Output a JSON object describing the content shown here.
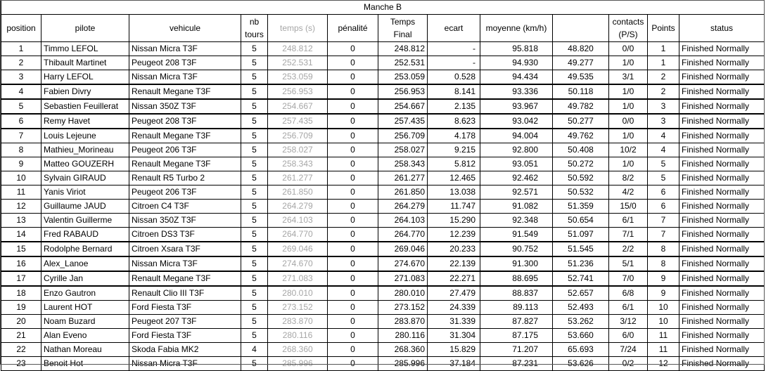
{
  "title": "Manche B",
  "headers": {
    "position": "position",
    "pilote": "pilote",
    "vehicule": "vehicule",
    "nb_tours": "nb tours",
    "temps": "temps (s)",
    "penalite": "pénalité",
    "temps_final": "Temps Final",
    "ecart": "ecart",
    "moyenne": "moyenne (km/h)",
    "unnamed": "",
    "contacts": "contacts (P/S)",
    "points": "Points",
    "status": "status"
  },
  "rows": [
    {
      "position": "1",
      "pilote": "Timmo LEFOL",
      "vehicule": "Nissan Micra T3F",
      "nb_tours": "5",
      "temps": "248.812",
      "penalite": "0",
      "temps_final": "248.812",
      "ecart": "-",
      "moyenne": "95.818",
      "unnamed": "48.820",
      "contacts": "0/0",
      "points": "1",
      "status": "Finished Normally"
    },
    {
      "position": "2",
      "pilote": "Thibault Martinet",
      "vehicule": "Peugeot 208 T3F",
      "nb_tours": "5",
      "temps": "252.531",
      "penalite": "0",
      "temps_final": "252.531",
      "ecart": "-",
      "moyenne": "94.930",
      "unnamed": "49.277",
      "contacts": "1/0",
      "points": "1",
      "status": "Finished Normally"
    },
    {
      "position": "3",
      "pilote": "Harry LEFOL",
      "vehicule": "Nissan Micra T3F",
      "nb_tours": "5",
      "temps": "253.059",
      "penalite": "0",
      "temps_final": "253.059",
      "ecart": "0.528",
      "moyenne": "94.434",
      "unnamed": "49.535",
      "contacts": "3/1",
      "points": "2",
      "status": "Finished Normally"
    },
    {
      "position": "4",
      "pilote": "Fabien Divry",
      "vehicule": "Renault Megane T3F",
      "nb_tours": "5",
      "temps": "256.953",
      "penalite": "0",
      "temps_final": "256.953",
      "ecart": "8.141",
      "moyenne": "93.336",
      "unnamed": "50.118",
      "contacts": "1/0",
      "points": "2",
      "status": "Finished Normally"
    },
    {
      "position": "5",
      "pilote": "Sebastien Feuillerat",
      "vehicule": "Nissan 350Z T3F",
      "nb_tours": "5",
      "temps": "254.667",
      "penalite": "0",
      "temps_final": "254.667",
      "ecart": "2.135",
      "moyenne": "93.967",
      "unnamed": "49.782",
      "contacts": "1/0",
      "points": "3",
      "status": "Finished Normally"
    },
    {
      "position": "6",
      "pilote": "Remy Havet",
      "vehicule": "Peugeot 208 T3F",
      "nb_tours": "5",
      "temps": "257.435",
      "penalite": "0",
      "temps_final": "257.435",
      "ecart": "8.623",
      "moyenne": "93.042",
      "unnamed": "50.277",
      "contacts": "0/0",
      "points": "3",
      "status": "Finished Normally"
    },
    {
      "position": "7",
      "pilote": "Louis Lejeune",
      "vehicule": "Renault Megane T3F",
      "nb_tours": "5",
      "temps": "256.709",
      "penalite": "0",
      "temps_final": "256.709",
      "ecart": "4.178",
      "moyenne": "94.004",
      "unnamed": "49.762",
      "contacts": "1/0",
      "points": "4",
      "status": "Finished Normally"
    },
    {
      "position": "8",
      "pilote": "Mathieu_Morineau",
      "vehicule": "Peugeot 206 T3F",
      "nb_tours": "5",
      "temps": "258.027",
      "penalite": "0",
      "temps_final": "258.027",
      "ecart": "9.215",
      "moyenne": "92.800",
      "unnamed": "50.408",
      "contacts": "10/2",
      "points": "4",
      "status": "Finished Normally"
    },
    {
      "position": "9",
      "pilote": "Matteo GOUZERH",
      "vehicule": "Renault Megane T3F",
      "nb_tours": "5",
      "temps": "258.343",
      "penalite": "0",
      "temps_final": "258.343",
      "ecart": "5.812",
      "moyenne": "93.051",
      "unnamed": "50.272",
      "contacts": "1/0",
      "points": "5",
      "status": "Finished Normally"
    },
    {
      "position": "10",
      "pilote": "Sylvain GIRAUD",
      "vehicule": "Renault R5 Turbo 2",
      "nb_tours": "5",
      "temps": "261.277",
      "penalite": "0",
      "temps_final": "261.277",
      "ecart": "12.465",
      "moyenne": "92.462",
      "unnamed": "50.592",
      "contacts": "8/2",
      "points": "5",
      "status": "Finished Normally"
    },
    {
      "position": "11",
      "pilote": "Yanis Viriot",
      "vehicule": "Peugeot 206 T3F",
      "nb_tours": "5",
      "temps": "261.850",
      "penalite": "0",
      "temps_final": "261.850",
      "ecart": "13.038",
      "moyenne": "92.571",
      "unnamed": "50.532",
      "contacts": "4/2",
      "points": "6",
      "status": "Finished Normally"
    },
    {
      "position": "12",
      "pilote": "Guillaume JAUD",
      "vehicule": "Citroen C4 T3F",
      "nb_tours": "5",
      "temps": "264.279",
      "penalite": "0",
      "temps_final": "264.279",
      "ecart": "11.747",
      "moyenne": "91.082",
      "unnamed": "51.359",
      "contacts": "15/0",
      "points": "6",
      "status": "Finished Normally"
    },
    {
      "position": "13",
      "pilote": "Valentin Guillerme",
      "vehicule": "Nissan 350Z T3F",
      "nb_tours": "5",
      "temps": "264.103",
      "penalite": "0",
      "temps_final": "264.103",
      "ecart": "15.290",
      "moyenne": "92.348",
      "unnamed": "50.654",
      "contacts": "6/1",
      "points": "7",
      "status": "Finished Normally"
    },
    {
      "position": "14",
      "pilote": "Fred RABAUD",
      "vehicule": "Citroen DS3 T3F",
      "nb_tours": "5",
      "temps": "264.770",
      "penalite": "0",
      "temps_final": "264.770",
      "ecart": "12.239",
      "moyenne": "91.549",
      "unnamed": "51.097",
      "contacts": "7/1",
      "points": "7",
      "status": "Finished Normally"
    },
    {
      "position": "15",
      "pilote": "Rodolphe Bernard",
      "vehicule": "Citroen Xsara T3F",
      "nb_tours": "5",
      "temps": "269.046",
      "penalite": "0",
      "temps_final": "269.046",
      "ecart": "20.233",
      "moyenne": "90.752",
      "unnamed": "51.545",
      "contacts": "2/2",
      "points": "8",
      "status": "Finished Normally"
    },
    {
      "position": "16",
      "pilote": "Alex_Lanoe",
      "vehicule": "Nissan Micra T3F",
      "nb_tours": "5",
      "temps": "274.670",
      "penalite": "0",
      "temps_final": "274.670",
      "ecart": "22.139",
      "moyenne": "91.300",
      "unnamed": "51.236",
      "contacts": "5/1",
      "points": "8",
      "status": "Finished Normally"
    },
    {
      "position": "17",
      "pilote": "Cyrille Jan",
      "vehicule": "Renault Megane T3F",
      "nb_tours": "5",
      "temps": "271.083",
      "penalite": "0",
      "temps_final": "271.083",
      "ecart": "22.271",
      "moyenne": "88.695",
      "unnamed": "52.741",
      "contacts": "7/0",
      "points": "9",
      "status": "Finished Normally"
    },
    {
      "position": "18",
      "pilote": "Enzo Gautron",
      "vehicule": "Renault Clio III T3F",
      "nb_tours": "5",
      "temps": "280.010",
      "penalite": "0",
      "temps_final": "280.010",
      "ecart": "27.479",
      "moyenne": "88.837",
      "unnamed": "52.657",
      "contacts": "6/8",
      "points": "9",
      "status": "Finished Normally"
    },
    {
      "position": "19",
      "pilote": "Laurent HOT",
      "vehicule": "Ford Fiesta T3F",
      "nb_tours": "5",
      "temps": "273.152",
      "penalite": "0",
      "temps_final": "273.152",
      "ecart": "24.339",
      "moyenne": "89.113",
      "unnamed": "52.493",
      "contacts": "6/1",
      "points": "10",
      "status": "Finished Normally"
    },
    {
      "position": "20",
      "pilote": "Noam Buzard",
      "vehicule": "Peugeot 207 T3F",
      "nb_tours": "5",
      "temps": "283.870",
      "penalite": "0",
      "temps_final": "283.870",
      "ecart": "31.339",
      "moyenne": "87.827",
      "unnamed": "53.262",
      "contacts": "3/12",
      "points": "10",
      "status": "Finished Normally"
    },
    {
      "position": "21",
      "pilote": "Alan Eveno",
      "vehicule": "Ford Fiesta T3F",
      "nb_tours": "5",
      "temps": "280.116",
      "penalite": "0",
      "temps_final": "280.116",
      "ecart": "31.304",
      "moyenne": "87.175",
      "unnamed": "53.660",
      "contacts": "6/0",
      "points": "11",
      "status": "Finished Normally"
    },
    {
      "position": "22",
      "pilote": "Nathan Moreau",
      "vehicule": "Skoda Fabia MK2",
      "nb_tours": "4",
      "temps": "268.360",
      "penalite": "0",
      "temps_final": "268.360",
      "ecart": "15.829",
      "moyenne": "71.207",
      "unnamed": "65.693",
      "contacts": "7/24",
      "points": "11",
      "status": "Finished Normally"
    },
    {
      "position": "23",
      "pilote": "Benoit Hot",
      "vehicule": "Nissan Micra T3F",
      "nb_tours": "5",
      "temps": "285.996",
      "penalite": "0",
      "temps_final": "285.996",
      "ecart": "37.184",
      "moyenne": "87.231",
      "unnamed": "53.626",
      "contacts": "0/2",
      "points": "12",
      "status": "Finished Normally"
    }
  ]
}
